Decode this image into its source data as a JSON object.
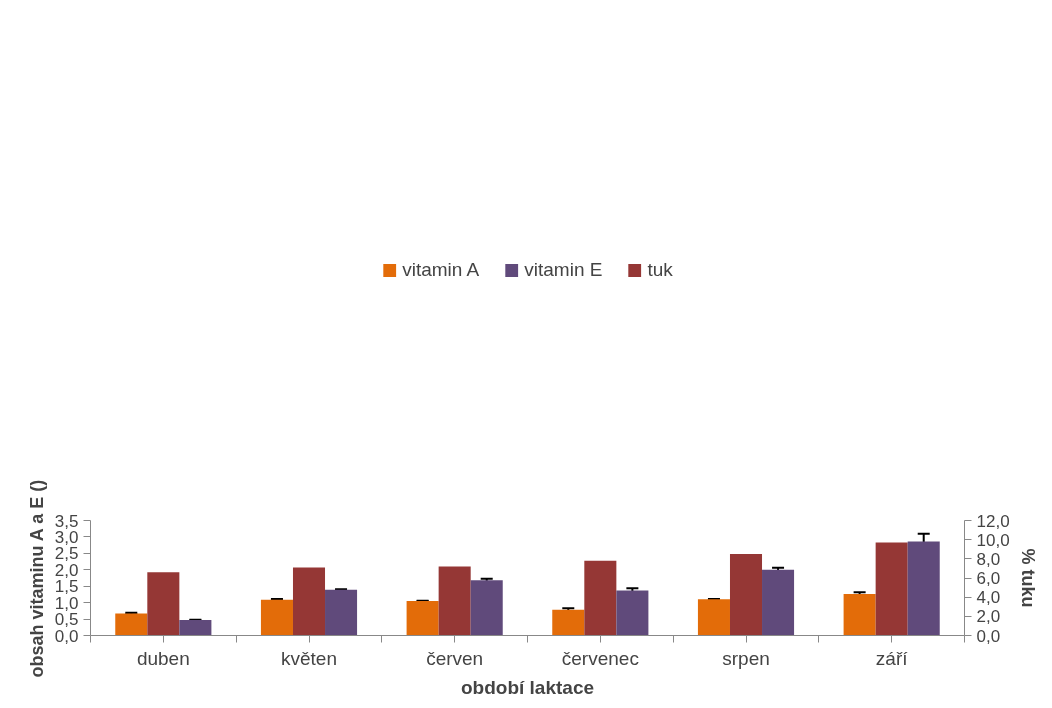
{
  "chart_data": {
    "type": "bar",
    "xlabel": "období laktace",
    "ylabel": "obsah vitaminu A a E ()",
    "y2label": "% tuku",
    "categories": [
      "duben",
      "květen",
      "červen",
      "červenec",
      "srpen",
      "září"
    ],
    "series": [
      {
        "name": "vitamin A",
        "color": "#e36c09",
        "values": [
          0.67,
          1.09,
          1.05,
          0.78,
          1.1,
          1.26
        ],
        "errors": [
          0.02,
          0.02,
          0.01,
          0.05,
          0.01,
          0.06
        ]
      },
      {
        "name": "vitamin E",
        "color": "#604a7b",
        "values": [
          0.47,
          1.39,
          1.68,
          1.37,
          2.0,
          2.86
        ],
        "errors": [
          0.01,
          0.02,
          0.05,
          0.07,
          0.06,
          0.24
        ]
      },
      {
        "name": "tuk",
        "color": "#953735",
        "values": [
          6.6,
          7.1,
          7.2,
          7.8,
          8.5,
          9.7
        ],
        "axis": "y2"
      }
    ],
    "ylim": [
      0,
      3.5
    ],
    "yticks": [
      {
        "value": 0,
        "label": "0,0"
      },
      {
        "value": 0.5,
        "label": "0,5"
      },
      {
        "value": 1,
        "label": "1,0"
      },
      {
        "value": 1.5,
        "label": "1,5"
      },
      {
        "value": 2,
        "label": "2,0"
      },
      {
        "value": 2.5,
        "label": "2,5"
      },
      {
        "value": 3,
        "label": "3,0"
      },
      {
        "value": 3.5,
        "label": "3,5"
      }
    ],
    "y2lim": [
      0,
      12
    ],
    "y2ticks": [
      {
        "value": 0,
        "label": "0,0"
      },
      {
        "value": 2,
        "label": "2,0"
      },
      {
        "value": 4,
        "label": "4,0"
      },
      {
        "value": 6,
        "label": "6,0"
      },
      {
        "value": 8,
        "label": "8,0"
      },
      {
        "value": 10,
        "label": "10,0"
      },
      {
        "value": 12,
        "label": "12,0"
      }
    ],
    "grid": false,
    "legend": "top"
  }
}
